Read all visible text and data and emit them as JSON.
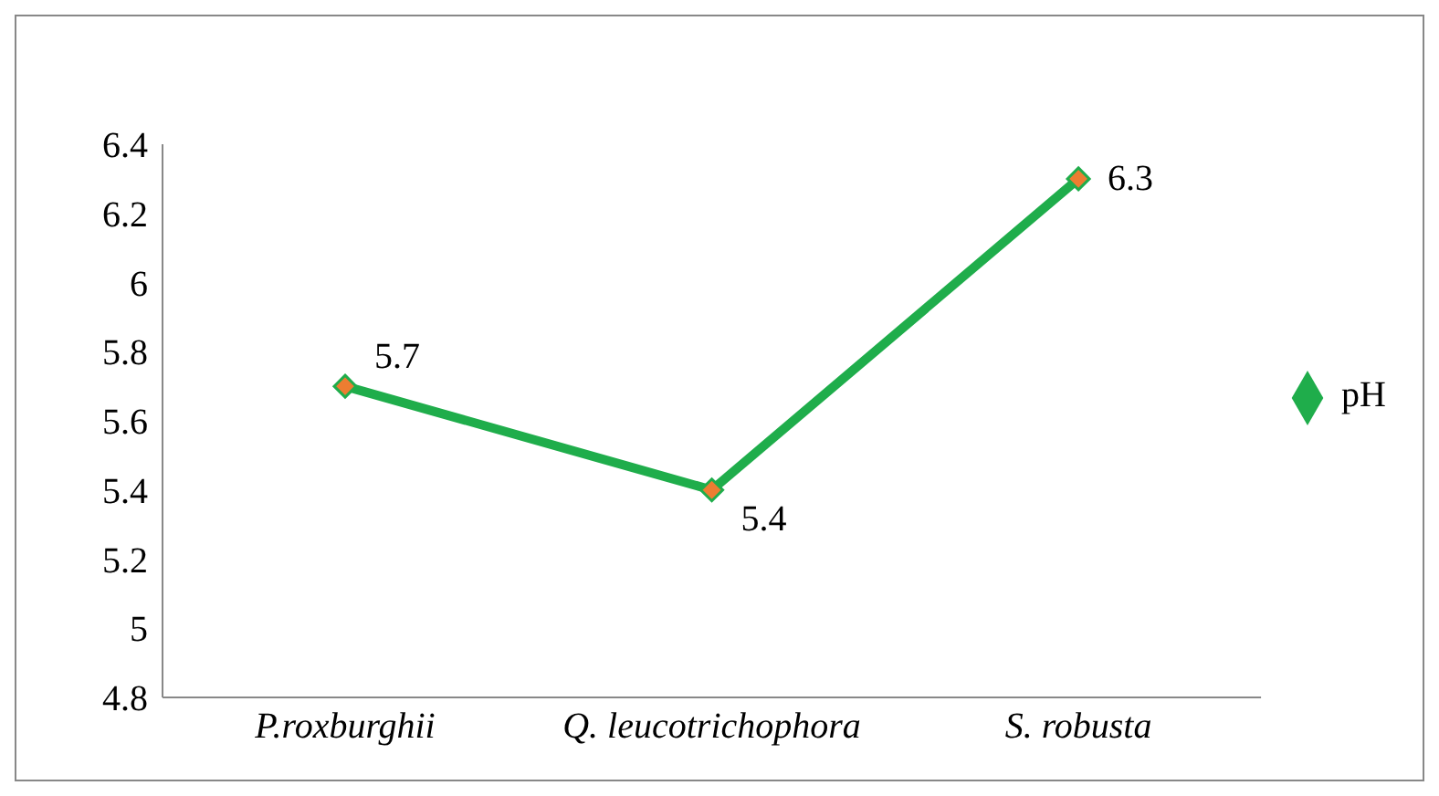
{
  "chart_data": {
    "type": "line",
    "categories": [
      "P.roxburghii",
      "Q. leucotrichophora",
      "S. robusta"
    ],
    "series": [
      {
        "name": "pH",
        "color": "#1fad4b",
        "values": [
          5.7,
          5.4,
          6.3
        ]
      }
    ],
    "ylim": [
      4.8,
      6.4
    ],
    "yticks": [
      4.8,
      5,
      5.2,
      5.4,
      5.6,
      5.8,
      6,
      6.2,
      6.4
    ],
    "data_labels": true,
    "legend": "right",
    "marker": "diamond",
    "line_style": "solid"
  }
}
